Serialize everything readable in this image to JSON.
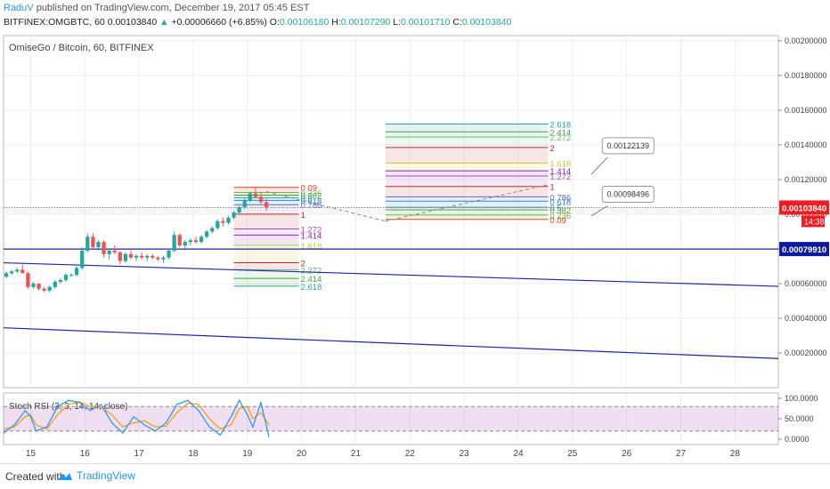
{
  "header": {
    "user": "RaduV",
    "published": " published on TradingView.com, December 19, 2017 05:45 EST",
    "symbol_line": "BITFINEX:OMGBTC, 60",
    "last": "0.00103840",
    "change": "+0.00006660 (+6.85%)",
    "o_label": "O:",
    "o": "0.00106180",
    "h_label": "H:",
    "h": "0.00107290",
    "l_label": "L:",
    "l": "0.00101710",
    "c_label": "C:",
    "c": "0.00103840"
  },
  "footer": {
    "created": "Created with",
    "brand": "TradingView"
  },
  "colors": {
    "up": "#26a69a",
    "down": "#ef5350",
    "blue_line": "#1e22aa",
    "price_tag": "#ef1c23",
    "blue_tag": "#0d1a9e"
  },
  "chart_data": {
    "type": "candlestick",
    "title": "OmiseGo / Bitcoin, 60, BITFINEX",
    "x_ticks": [
      "15",
      "16",
      "17",
      "18",
      "19",
      "20",
      "21",
      "22",
      "23",
      "24",
      "25",
      "26",
      "27",
      "28"
    ],
    "y_ticks": [
      "0.00200000",
      "0.00180000",
      "0.00160000",
      "0.00140000",
      "0.00120000",
      "0.00100000",
      "0.00080000",
      "0.00060000",
      "0.00040000",
      "0.00020000"
    ],
    "ylim": [
      0.0,
      0.00203
    ],
    "x_day_start": 14.5,
    "price_tag": "0.00103840",
    "price_tag_time": "14:38",
    "hline_tag": "0.00079910",
    "candles": [
      [
        14.55,
        0.00064,
        0.00067,
        0.00063,
        0.00066
      ],
      [
        14.65,
        0.00066,
        0.00068,
        0.00065,
        0.00067
      ],
      [
        14.75,
        0.00067,
        0.00069,
        0.00066,
        0.00068
      ],
      [
        14.85,
        0.00068,
        0.00071,
        0.00067,
        0.00066
      ],
      [
        14.95,
        0.00066,
        0.00067,
        0.00057,
        0.00058
      ],
      [
        15.05,
        0.00058,
        0.00061,
        0.00057,
        0.0006
      ],
      [
        15.15,
        0.0006,
        0.0006,
        0.00056,
        0.00057
      ],
      [
        15.25,
        0.00057,
        0.00058,
        0.00055,
        0.00056
      ],
      [
        15.35,
        0.00056,
        0.00059,
        0.00055,
        0.00058
      ],
      [
        15.45,
        0.00058,
        0.00062,
        0.00057,
        0.00061
      ],
      [
        15.55,
        0.00061,
        0.00063,
        0.0006,
        0.00062
      ],
      [
        15.65,
        0.00062,
        0.00066,
        0.00061,
        0.00065
      ],
      [
        15.75,
        0.00065,
        0.00066,
        0.00064,
        0.00065
      ],
      [
        15.85,
        0.00065,
        0.0007,
        0.00064,
        0.00069
      ],
      [
        15.95,
        0.00069,
        0.00081,
        0.00068,
        0.00079
      ],
      [
        16.05,
        0.00079,
        0.00089,
        0.00078,
        0.00087
      ],
      [
        16.15,
        0.00087,
        0.00089,
        0.0008,
        0.00081
      ],
      [
        16.25,
        0.00081,
        0.00085,
        0.00079,
        0.00084
      ],
      [
        16.35,
        0.00084,
        0.00085,
        0.00075,
        0.00077
      ],
      [
        16.45,
        0.00077,
        0.0008,
        0.00074,
        0.00079
      ],
      [
        16.55,
        0.00079,
        0.00082,
        0.00077,
        0.00078
      ],
      [
        16.65,
        0.00078,
        0.00079,
        0.00071,
        0.00073
      ],
      [
        16.75,
        0.00073,
        0.00078,
        0.00072,
        0.00077
      ],
      [
        16.85,
        0.00077,
        0.00079,
        0.00074,
        0.00075
      ],
      [
        16.95,
        0.00075,
        0.00077,
        0.00073,
        0.00076
      ],
      [
        17.05,
        0.00076,
        0.00078,
        0.00074,
        0.00075
      ],
      [
        17.15,
        0.00075,
        0.00077,
        0.00073,
        0.00076
      ],
      [
        17.25,
        0.00076,
        0.00077,
        0.00074,
        0.00075
      ],
      [
        17.35,
        0.00075,
        0.00076,
        0.00073,
        0.00074
      ],
      [
        17.45,
        0.00074,
        0.00076,
        0.00072,
        0.00075
      ],
      [
        17.55,
        0.00075,
        0.0008,
        0.00074,
        0.00079
      ],
      [
        17.65,
        0.00079,
        0.0009,
        0.00078,
        0.00088
      ],
      [
        17.75,
        0.00088,
        0.00089,
        0.00081,
        0.00082
      ],
      [
        17.85,
        0.00082,
        0.00085,
        0.0008,
        0.00084
      ],
      [
        17.95,
        0.00084,
        0.00086,
        0.00082,
        0.00085
      ],
      [
        18.05,
        0.00085,
        0.00087,
        0.00083,
        0.00084
      ],
      [
        18.15,
        0.00084,
        0.00088,
        0.00083,
        0.00087
      ],
      [
        18.25,
        0.00087,
        0.00091,
        0.00086,
        0.0009
      ],
      [
        18.35,
        0.0009,
        0.00093,
        0.00089,
        0.00092
      ],
      [
        18.45,
        0.00092,
        0.00097,
        0.00091,
        0.00096
      ],
      [
        18.55,
        0.00096,
        0.00098,
        0.00093,
        0.00095
      ],
      [
        18.65,
        0.00095,
        0.00099,
        0.00094,
        0.00098
      ],
      [
        18.75,
        0.00098,
        0.00102,
        0.00097,
        0.00101
      ],
      [
        18.85,
        0.00101,
        0.00105,
        0.001,
        0.00104
      ],
      [
        18.95,
        0.00104,
        0.00109,
        0.00103,
        0.00108
      ],
      [
        19.05,
        0.00108,
        0.00113,
        0.00107,
        0.00112
      ],
      [
        19.15,
        0.00112,
        0.00116,
        0.00109,
        0.0011
      ],
      [
        19.25,
        0.0011,
        0.00113,
        0.00106,
        0.00107
      ],
      [
        19.35,
        0.00107,
        0.00109,
        0.00102,
        0.00104
      ]
    ],
    "trendlines": [
      {
        "x1": 14.5,
        "y1": 0.00072,
        "x2": 28.8,
        "y2": 0.000584
      },
      {
        "x1": 14.5,
        "y1": 0.000345,
        "x2": 28.8,
        "y2": 0.000168
      }
    ],
    "hline": 0.0007991,
    "fib_left": {
      "x1": 18.75,
      "x2": 19.95,
      "levels": [
        {
          "label": "0.09",
          "v": 0.001155,
          "c": "#d84315"
        },
        {
          "label": "0.236",
          "v": 0.001125,
          "c": "#7cb342"
        },
        {
          "label": "0.382",
          "v": 0.00111,
          "c": "#43a047"
        },
        {
          "label": "0.5",
          "v": 0.001095,
          "c": "#26a69a"
        },
        {
          "label": "0.618",
          "v": 0.00108,
          "c": "#1e88e5"
        },
        {
          "label": "0.786",
          "v": 0.001055,
          "c": "#5c6bc0"
        },
        {
          "label": "1",
          "v": 0.001,
          "c": "#c62828"
        },
        {
          "label": "1.272",
          "v": 0.000915,
          "c": "#ab47bc"
        },
        {
          "label": "1.414",
          "v": 0.00088,
          "c": "#8e24aa"
        },
        {
          "label": "1.618",
          "v": 0.00082,
          "c": "#c0ca33"
        },
        {
          "label": "2",
          "v": 0.00072,
          "c": "#c62828"
        },
        {
          "label": "2.272",
          "v": 0.00068,
          "c": "#66bb6a"
        },
        {
          "label": "2.414",
          "v": 0.00063,
          "c": "#43a047"
        },
        {
          "label": "2.618",
          "v": 0.000585,
          "c": "#26a69a"
        }
      ]
    },
    "fib_right": {
      "x1": 21.55,
      "x2": 24.55,
      "levels": [
        {
          "label": "2.618",
          "v": 0.00152,
          "c": "#26a69a"
        },
        {
          "label": "2.414",
          "v": 0.001475,
          "c": "#43a047"
        },
        {
          "label": "2.272",
          "v": 0.001445,
          "c": "#66bb6a"
        },
        {
          "label": "2",
          "v": 0.001385,
          "c": "#c62828"
        },
        {
          "label": "1.618",
          "v": 0.001295,
          "c": "#c0ca33"
        },
        {
          "label": "1.414",
          "v": 0.00125,
          "c": "#8e24aa"
        },
        {
          "label": "1.272",
          "v": 0.00122,
          "c": "#ab47bc"
        },
        {
          "label": "1",
          "v": 0.00116,
          "c": "#c62828"
        },
        {
          "label": "0.786",
          "v": 0.0011,
          "c": "#5c6bc0"
        },
        {
          "label": "0.618",
          "v": 0.001075,
          "c": "#1e88e5"
        },
        {
          "label": "0.5",
          "v": 0.00104,
          "c": "#26a69a"
        },
        {
          "label": "0.382",
          "v": 0.001025,
          "c": "#43a047"
        },
        {
          "label": "0.236",
          "v": 0.000995,
          "c": "#7cb342"
        },
        {
          "label": "0.09",
          "v": 0.00097,
          "c": "#d84315"
        }
      ]
    },
    "projections": [
      {
        "x1": 19.35,
        "y1": 0.00113,
        "x2": 21.55,
        "y2": 0.00096
      },
      {
        "x1": 21.55,
        "y1": 0.00096,
        "x2": 24.55,
        "y2": 0.00117
      }
    ],
    "callouts": [
      {
        "label": "0.00122139",
        "x": 25.55,
        "y": 0.0014,
        "tx": 25.35,
        "ty": 0.00123
      },
      {
        "label": "0.00098496",
        "x": 25.55,
        "y": 0.00112,
        "tx": 25.35,
        "ty": 0.00099
      }
    ],
    "rsi": {
      "label": "Stoch RSI (3, 3, 14, 14, close)",
      "ticks": [
        "100.0000",
        "50.0000",
        "0.0000"
      ],
      "k": [
        [
          14.5,
          15
        ],
        [
          14.7,
          35
        ],
        [
          14.9,
          70
        ],
        [
          15.0,
          55
        ],
        [
          15.1,
          20
        ],
        [
          15.3,
          30
        ],
        [
          15.5,
          80
        ],
        [
          15.7,
          95
        ],
        [
          15.9,
          90
        ],
        [
          16.1,
          70
        ],
        [
          16.3,
          85
        ],
        [
          16.5,
          40
        ],
        [
          16.7,
          15
        ],
        [
          16.9,
          55
        ],
        [
          17.1,
          35
        ],
        [
          17.3,
          20
        ],
        [
          17.5,
          40
        ],
        [
          17.7,
          85
        ],
        [
          17.9,
          95
        ],
        [
          18.1,
          70
        ],
        [
          18.3,
          30
        ],
        [
          18.5,
          10
        ],
        [
          18.7,
          55
        ],
        [
          18.85,
          95
        ],
        [
          19.0,
          60
        ],
        [
          19.1,
          30
        ],
        [
          19.25,
          90
        ],
        [
          19.4,
          5
        ]
      ],
      "d": [
        [
          14.5,
          25
        ],
        [
          14.7,
          30
        ],
        [
          14.9,
          55
        ],
        [
          15.0,
          60
        ],
        [
          15.1,
          35
        ],
        [
          15.3,
          25
        ],
        [
          15.5,
          60
        ],
        [
          15.7,
          85
        ],
        [
          15.9,
          92
        ],
        [
          16.1,
          80
        ],
        [
          16.3,
          78
        ],
        [
          16.5,
          60
        ],
        [
          16.7,
          30
        ],
        [
          16.9,
          40
        ],
        [
          17.1,
          45
        ],
        [
          17.3,
          30
        ],
        [
          17.5,
          32
        ],
        [
          17.7,
          65
        ],
        [
          17.9,
          88
        ],
        [
          18.1,
          85
        ],
        [
          18.3,
          50
        ],
        [
          18.5,
          25
        ],
        [
          18.7,
          35
        ],
        [
          18.85,
          75
        ],
        [
          19.0,
          80
        ],
        [
          19.1,
          50
        ],
        [
          19.25,
          65
        ],
        [
          19.4,
          35
        ]
      ]
    }
  }
}
